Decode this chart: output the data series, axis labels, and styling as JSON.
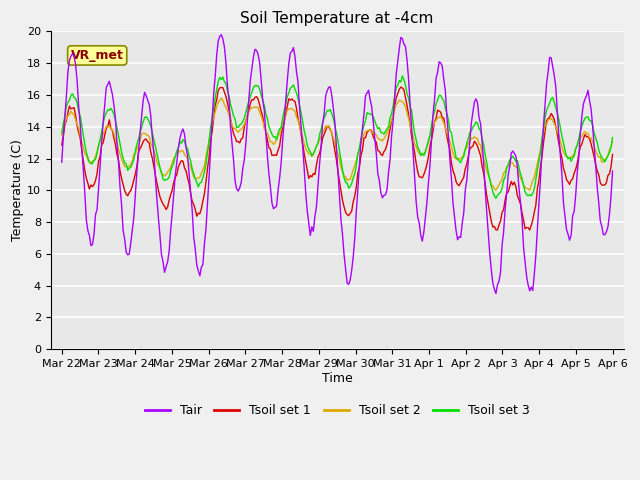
{
  "title": "Soil Temperature at -4cm",
  "xlabel": "Time",
  "ylabel": "Temperature (C)",
  "ylim": [
    0,
    20
  ],
  "colors": {
    "Tair": "#aa00ff",
    "Tsoil1": "#dd0000",
    "Tsoil2": "#ddaa00",
    "Tsoil3": "#00dd00"
  },
  "legend_labels": [
    "Tair",
    "Tsoil set 1",
    "Tsoil set 2",
    "Tsoil set 3"
  ],
  "annotation_text": "VR_met",
  "title_fontsize": 11,
  "axis_fontsize": 9,
  "tick_fontsize": 8,
  "legend_fontsize": 9,
  "linewidth": 1.0,
  "n_points": 360,
  "date_labels": [
    "Mar 22",
    "Mar 23",
    "Mar 24",
    "Mar 25",
    "Mar 26",
    "Mar 27",
    "Mar 28",
    "Mar 29",
    "Mar 30",
    "Mar 31",
    "Apr 1",
    "Apr 2",
    "Apr 3",
    "Apr 4",
    "Apr 5",
    "Apr 6"
  ],
  "date_ticks": [
    0,
    1,
    2,
    3,
    4,
    5,
    6,
    7,
    8,
    9,
    10,
    11,
    12,
    13,
    14,
    15
  ]
}
